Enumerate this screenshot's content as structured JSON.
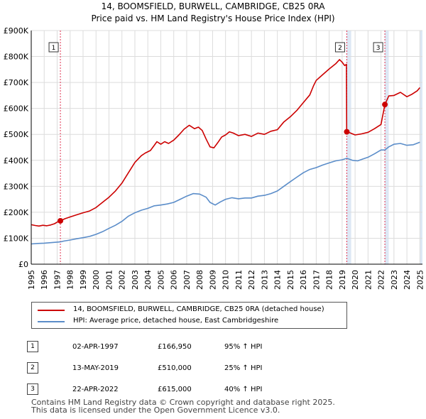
{
  "chart_data": {
    "type": "line",
    "title": "14, BOOMSFIELD, BURWELL, CAMBRIDGE, CB25 0RA",
    "subtitle": "Price paid vs. HM Land Registry's House Price Index (HPI)",
    "xlim": [
      1995.0,
      2025.2
    ],
    "ylim": [
      0,
      900000
    ],
    "y_ticks": [
      0,
      100000,
      200000,
      300000,
      400000,
      500000,
      600000,
      700000,
      800000,
      900000
    ],
    "y_tick_labels": [
      "£0",
      "£100K",
      "£200K",
      "£300K",
      "£400K",
      "£500K",
      "£600K",
      "£700K",
      "£800K",
      "£900K"
    ],
    "x_ticks": [
      1995,
      1996,
      1997,
      1998,
      1999,
      2000,
      2001,
      2002,
      2003,
      2004,
      2005,
      2006,
      2007,
      2008,
      2009,
      2010,
      2011,
      2012,
      2013,
      2014,
      2015,
      2016,
      2017,
      2018,
      2019,
      2020,
      2021,
      2022,
      2023,
      2024,
      2025
    ],
    "x_tick_labels": [
      "1995",
      "1996",
      "1997",
      "1998",
      "1999",
      "2000",
      "2001",
      "2002",
      "2003",
      "2004",
      "2005",
      "2006",
      "2007",
      "2008",
      "2009",
      "2010",
      "2011",
      "2012",
      "2013",
      "2014",
      "2015",
      "2016",
      "2017",
      "2018",
      "2019",
      "2020",
      "2021",
      "2022",
      "2023",
      "2024",
      "2025"
    ],
    "grid": true,
    "shaded_spans": [
      [
        2019.36,
        2019.7
      ],
      [
        2022.3,
        2022.6
      ],
      [
        2025.0,
        2025.2
      ]
    ],
    "colors": {
      "property": "#cc0000",
      "hpi": "#5b8dc9",
      "marker_line": "#e03050",
      "grid": "#dcdcdc",
      "span": "#dde8f5"
    },
    "series": [
      {
        "name": "14, BOOMSFIELD, BURWELL, CAMBRIDGE, CB25 0RA (detached house)",
        "color": "#cc0000",
        "points": [
          [
            1995.0,
            152000
          ],
          [
            1995.3,
            149000
          ],
          [
            1995.6,
            147000
          ],
          [
            1995.9,
            150000
          ],
          [
            1996.2,
            148000
          ],
          [
            1996.5,
            151000
          ],
          [
            1996.8,
            156000
          ],
          [
            1997.0,
            162000
          ],
          [
            1997.25,
            166950
          ],
          [
            1997.6,
            175000
          ],
          [
            1998.0,
            182000
          ],
          [
            1998.5,
            190000
          ],
          [
            1999.0,
            198000
          ],
          [
            1999.5,
            205000
          ],
          [
            2000.0,
            218000
          ],
          [
            2000.5,
            238000
          ],
          [
            2001.0,
            258000
          ],
          [
            2001.5,
            282000
          ],
          [
            2002.0,
            312000
          ],
          [
            2002.5,
            352000
          ],
          [
            2003.0,
            392000
          ],
          [
            2003.5,
            418000
          ],
          [
            2003.8,
            428000
          ],
          [
            2004.2,
            438000
          ],
          [
            2004.5,
            458000
          ],
          [
            2004.7,
            472000
          ],
          [
            2005.0,
            462000
          ],
          [
            2005.3,
            472000
          ],
          [
            2005.6,
            465000
          ],
          [
            2006.0,
            478000
          ],
          [
            2006.4,
            498000
          ],
          [
            2006.8,
            520000
          ],
          [
            2007.2,
            535000
          ],
          [
            2007.6,
            522000
          ],
          [
            2007.9,
            528000
          ],
          [
            2008.2,
            515000
          ],
          [
            2008.5,
            482000
          ],
          [
            2008.8,
            452000
          ],
          [
            2009.1,
            448000
          ],
          [
            2009.4,
            468000
          ],
          [
            2009.7,
            490000
          ],
          [
            2010.0,
            498000
          ],
          [
            2010.3,
            510000
          ],
          [
            2010.6,
            505000
          ],
          [
            2011.0,
            495000
          ],
          [
            2011.5,
            500000
          ],
          [
            2012.0,
            492000
          ],
          [
            2012.5,
            505000
          ],
          [
            2013.0,
            500000
          ],
          [
            2013.5,
            512000
          ],
          [
            2014.0,
            518000
          ],
          [
            2014.5,
            548000
          ],
          [
            2015.0,
            568000
          ],
          [
            2015.5,
            592000
          ],
          [
            2016.0,
            622000
          ],
          [
            2016.5,
            652000
          ],
          [
            2016.8,
            688000
          ],
          [
            2017.0,
            708000
          ],
          [
            2017.5,
            730000
          ],
          [
            2018.0,
            752000
          ],
          [
            2018.5,
            772000
          ],
          [
            2018.8,
            788000
          ],
          [
            2019.0,
            778000
          ],
          [
            2019.2,
            765000
          ],
          [
            2019.33,
            770000
          ],
          [
            2019.35,
            510000
          ],
          [
            2019.6,
            506000
          ],
          [
            2020.0,
            498000
          ],
          [
            2020.5,
            502000
          ],
          [
            2021.0,
            508000
          ],
          [
            2021.5,
            522000
          ],
          [
            2022.0,
            538000
          ],
          [
            2022.3,
            615000
          ],
          [
            2022.6,
            648000
          ],
          [
            2023.0,
            650000
          ],
          [
            2023.5,
            662000
          ],
          [
            2024.0,
            645000
          ],
          [
            2024.4,
            655000
          ],
          [
            2024.8,
            668000
          ],
          [
            2025.0,
            680000
          ]
        ]
      },
      {
        "name": "HPI: Average price, detached house, East Cambridgeshire",
        "color": "#5b8dc9",
        "points": [
          [
            1995.0,
            78000
          ],
          [
            1995.5,
            80000
          ],
          [
            1996.0,
            81000
          ],
          [
            1996.5,
            83000
          ],
          [
            1997.0,
            85000
          ],
          [
            1997.25,
            86000
          ],
          [
            1997.5,
            89000
          ],
          [
            1998.0,
            93000
          ],
          [
            1998.5,
            98000
          ],
          [
            1999.0,
            102000
          ],
          [
            1999.5,
            107000
          ],
          [
            2000.0,
            115000
          ],
          [
            2000.5,
            125000
          ],
          [
            2001.0,
            138000
          ],
          [
            2001.5,
            150000
          ],
          [
            2002.0,
            165000
          ],
          [
            2002.5,
            185000
          ],
          [
            2003.0,
            198000
          ],
          [
            2003.5,
            208000
          ],
          [
            2004.0,
            215000
          ],
          [
            2004.5,
            225000
          ],
          [
            2005.0,
            228000
          ],
          [
            2005.5,
            232000
          ],
          [
            2006.0,
            238000
          ],
          [
            2006.5,
            250000
          ],
          [
            2007.0,
            262000
          ],
          [
            2007.5,
            272000
          ],
          [
            2008.0,
            270000
          ],
          [
            2008.5,
            258000
          ],
          [
            2008.8,
            238000
          ],
          [
            2009.2,
            228000
          ],
          [
            2009.6,
            240000
          ],
          [
            2010.0,
            250000
          ],
          [
            2010.5,
            256000
          ],
          [
            2011.0,
            252000
          ],
          [
            2011.5,
            255000
          ],
          [
            2012.0,
            255000
          ],
          [
            2012.5,
            262000
          ],
          [
            2013.0,
            265000
          ],
          [
            2013.5,
            272000
          ],
          [
            2014.0,
            282000
          ],
          [
            2014.5,
            300000
          ],
          [
            2015.0,
            318000
          ],
          [
            2015.5,
            335000
          ],
          [
            2016.0,
            352000
          ],
          [
            2016.5,
            365000
          ],
          [
            2017.0,
            372000
          ],
          [
            2017.5,
            382000
          ],
          [
            2018.0,
            390000
          ],
          [
            2018.5,
            398000
          ],
          [
            2019.0,
            402000
          ],
          [
            2019.36,
            408000
          ],
          [
            2019.8,
            400000
          ],
          [
            2020.2,
            398000
          ],
          [
            2020.6,
            405000
          ],
          [
            2021.0,
            412000
          ],
          [
            2021.5,
            425000
          ],
          [
            2022.0,
            440000
          ],
          [
            2022.3,
            440000
          ],
          [
            2022.6,
            452000
          ],
          [
            2023.0,
            462000
          ],
          [
            2023.5,
            465000
          ],
          [
            2024.0,
            458000
          ],
          [
            2024.5,
            460000
          ],
          [
            2025.0,
            470000
          ]
        ]
      }
    ],
    "sales": [
      {
        "label": "1",
        "date": "02-APR-1997",
        "x": 1997.25,
        "price_value": 166950,
        "price": "£166,950",
        "hpi": "95% ↑ HPI"
      },
      {
        "label": "2",
        "date": "13-MAY-2019",
        "x": 2019.36,
        "price_value": 510000,
        "price": "£510,000",
        "hpi": "25% ↑ HPI"
      },
      {
        "label": "3",
        "date": "22-APR-2022",
        "x": 2022.3,
        "price_value": 615000,
        "price": "£615,000",
        "hpi": "40% ↑ HPI"
      }
    ]
  },
  "legend": {
    "property_label": "14, BOOMSFIELD, BURWELL, CAMBRIDGE, CB25 0RA (detached house)",
    "hpi_label": "HPI: Average price, detached house, East Cambridgeshire"
  },
  "footer": {
    "line1": "Contains HM Land Registry data © Crown copyright and database right 2025.",
    "line2": "This data is licensed under the Open Government Licence v3.0."
  }
}
